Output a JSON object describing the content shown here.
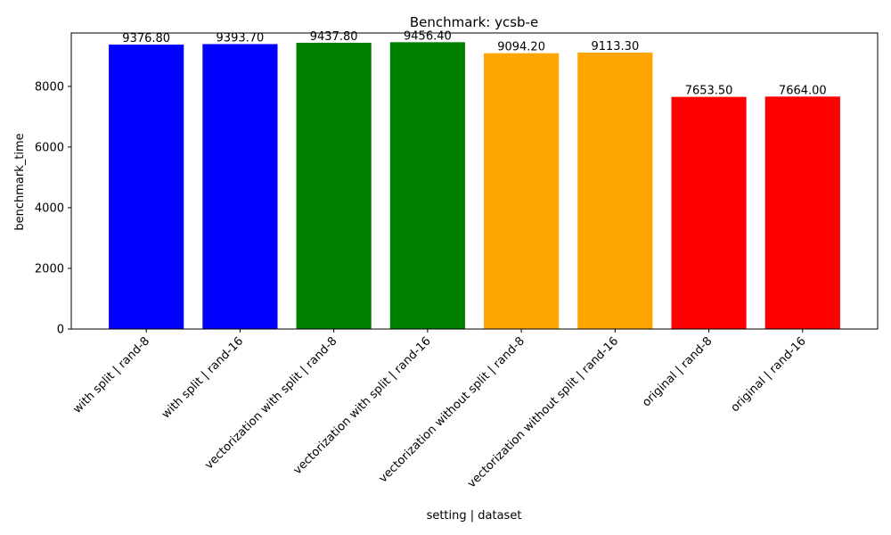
{
  "chart_data": {
    "type": "bar",
    "title": "Benchmark: ycsb-e",
    "xlabel": "setting | dataset",
    "ylabel": "benchmark_time",
    "categories": [
      "with split | rand-8",
      "with split | rand-16",
      "vectorization with split | rand-8",
      "vectorization with split | rand-16",
      "vectorization without split | rand-8",
      "vectorization without split | rand-16",
      "original | rand-8",
      "original | rand-16"
    ],
    "values": [
      9376.8,
      9393.7,
      9437.8,
      9456.4,
      9094.2,
      9113.3,
      7653.5,
      7664.0
    ],
    "data_labels": [
      "9376.80",
      "9393.70",
      "9437.80",
      "9456.40",
      "9094.20",
      "9113.30",
      "7653.50",
      "7664.00"
    ],
    "colors": [
      "#0000ff",
      "#0000ff",
      "#008000",
      "#008000",
      "#ffa500",
      "#ffa500",
      "#ff0000",
      "#ff0000"
    ],
    "yticks": [
      0,
      2000,
      4000,
      6000,
      8000
    ],
    "ylim": [
      0,
      9760
    ],
    "grid": false,
    "legend": "none"
  }
}
